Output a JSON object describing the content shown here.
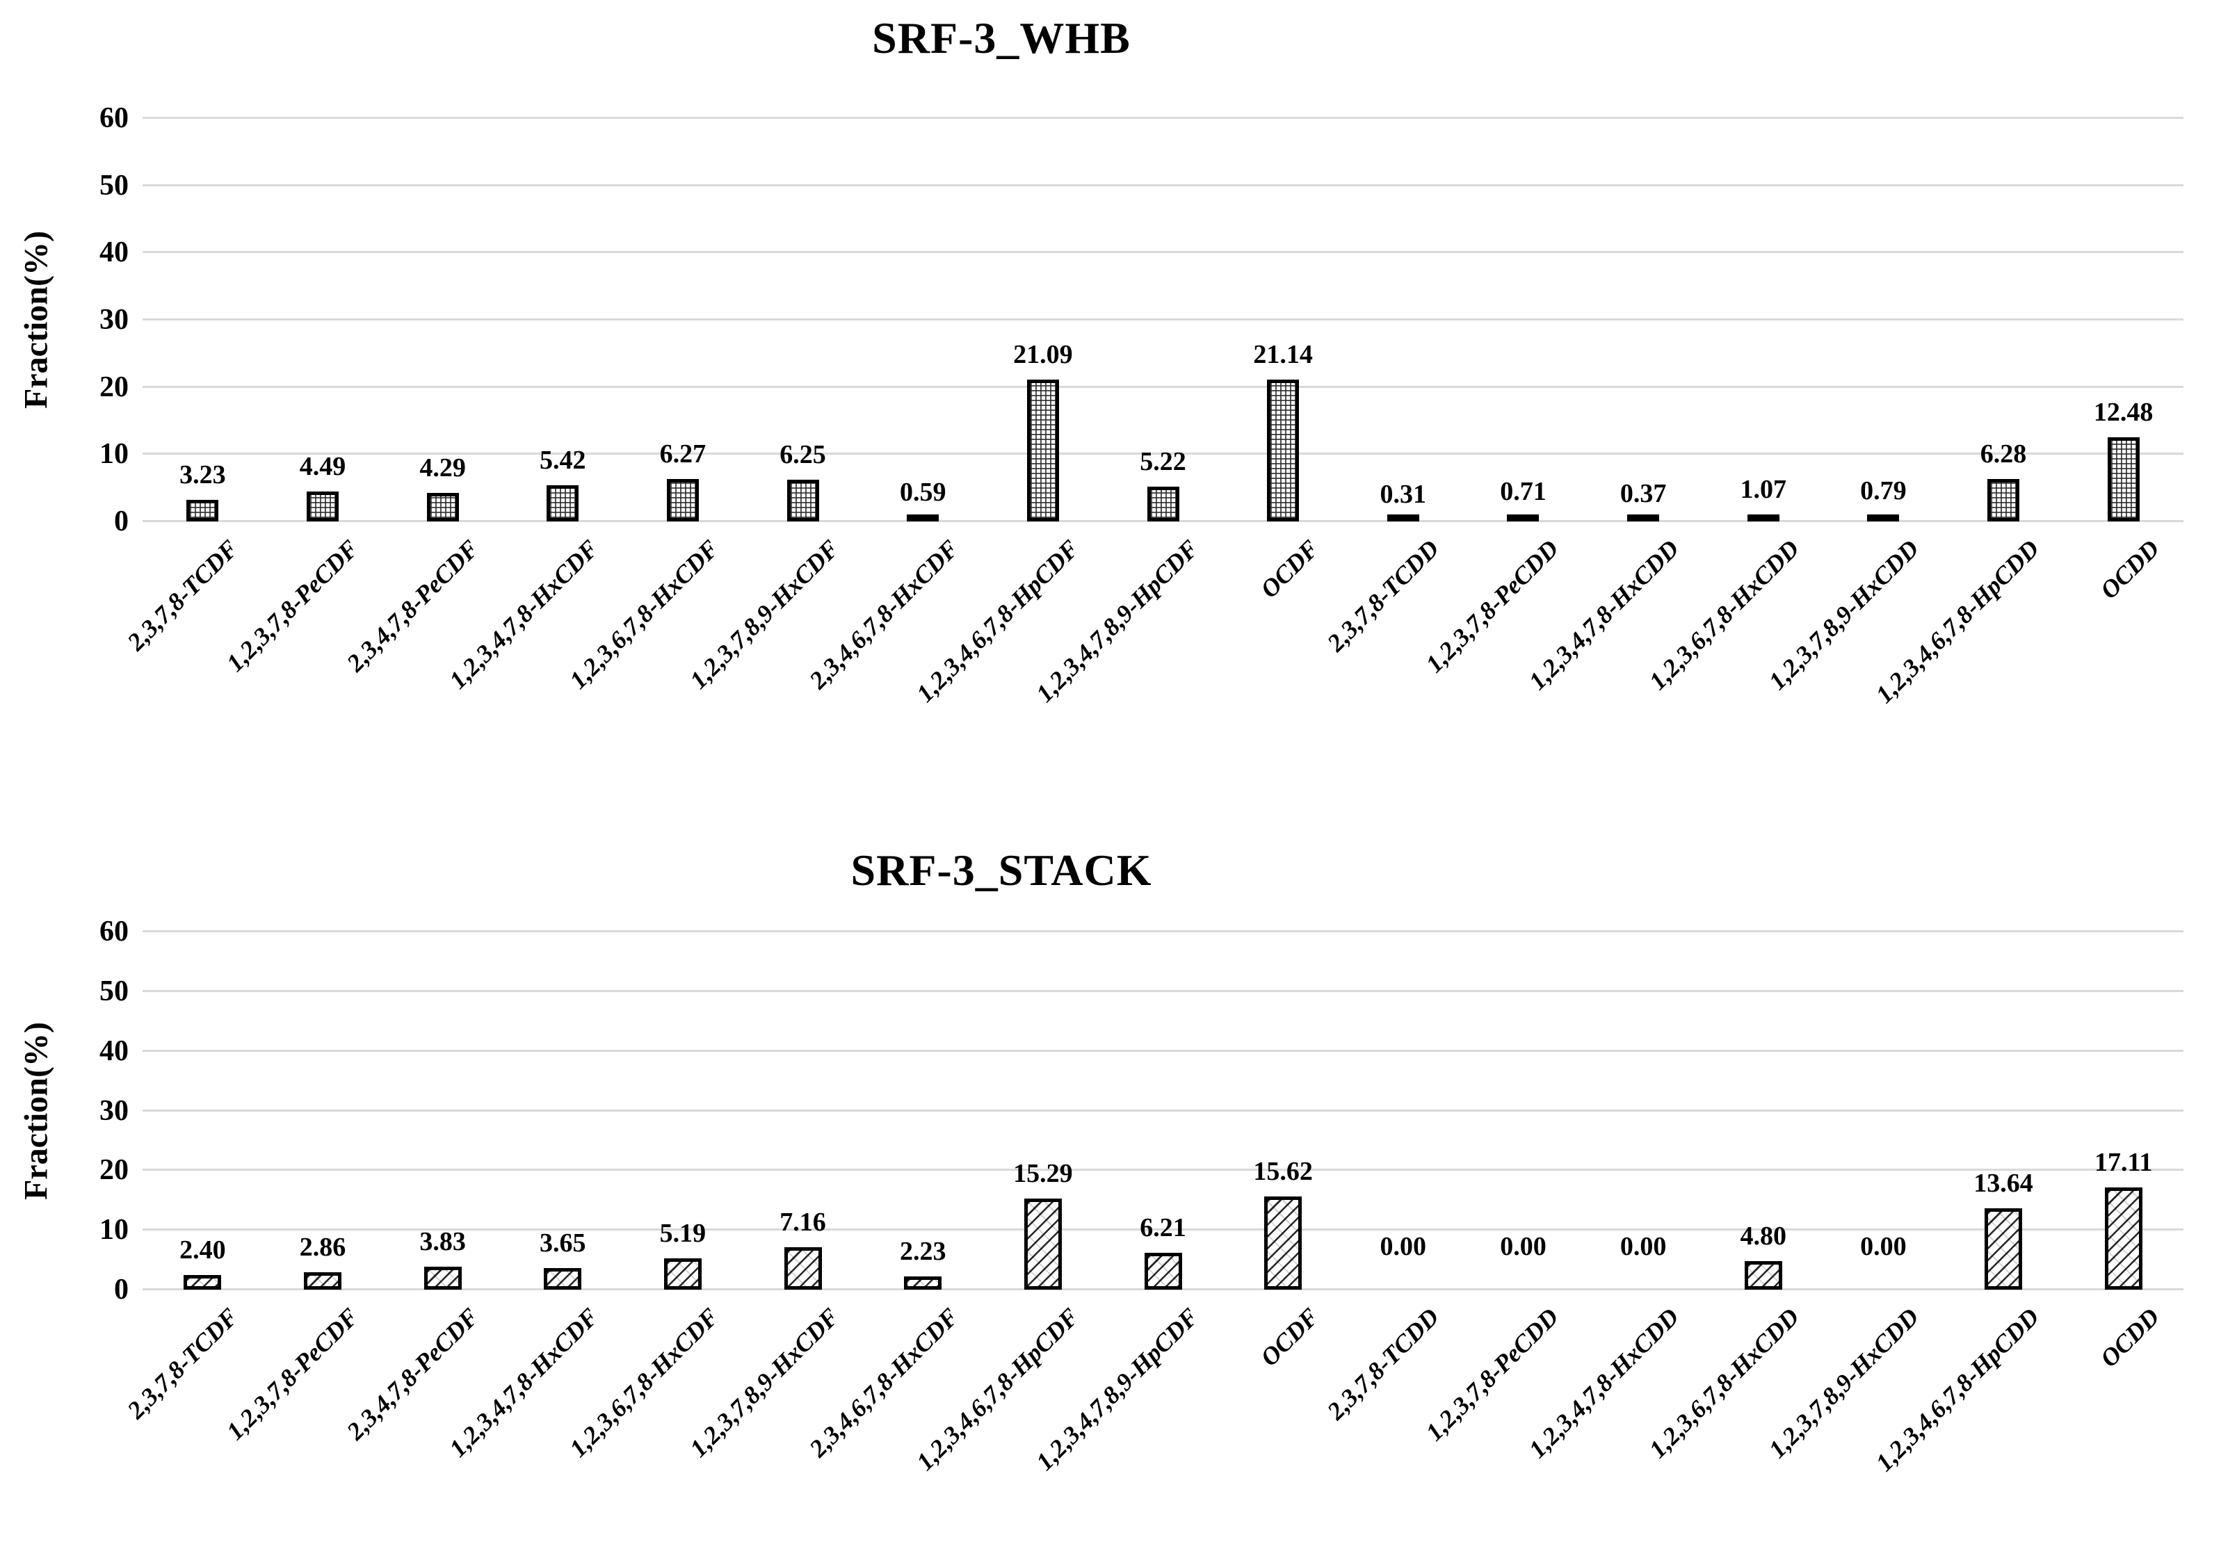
{
  "colors": {
    "background": "#ffffff",
    "gridline": "#d9d9d9",
    "bar_border": "#000000",
    "text": "#000000"
  },
  "chart_data": [
    {
      "type": "bar",
      "title": "SRF-3_WHB",
      "xlabel": "",
      "ylabel": "Fraction(%)",
      "ylim": [
        0,
        60
      ],
      "yticks": [
        0,
        10,
        20,
        30,
        40,
        50,
        60
      ],
      "grid": true,
      "legend_position": "none",
      "fill_pattern": "dotted-grid",
      "categories": [
        "2,3,7,8-TCDF",
        "1,2,3,7,8-PeCDF",
        "2,3,4,7,8-PeCDF",
        "1,2,3,4,7,8-HxCDF",
        "1,2,3,6,7,8-HxCDF",
        "1,2,3,7,8,9-HxCDF",
        "2,3,4,6,7,8-HxCDF",
        "1,2,3,4,6,7,8-HpCDF",
        "1,2,3,4,7,8,9-HpCDF",
        "OCDF",
        "2,3,7,8-TCDD",
        "1,2,3,7,8-PeCDD",
        "1,2,3,4,7,8-HxCDD",
        "1,2,3,6,7,8-HxCDD",
        "1,2,3,7,8,9-HxCDD",
        "1,2,3,4,6,7,8-HpCDD",
        "OCDD"
      ],
      "values": [
        3.23,
        4.49,
        4.29,
        5.42,
        6.27,
        6.25,
        0.59,
        21.09,
        5.22,
        21.14,
        0.31,
        0.71,
        0.37,
        1.07,
        0.79,
        6.28,
        12.48
      ],
      "value_labels": [
        "3.23",
        "4.49",
        "4.29",
        "5.42",
        "6.27",
        "6.25",
        "0.59",
        "21.09",
        "5.22",
        "21.14",
        "0.31",
        "0.71",
        "0.37",
        "1.07",
        "0.79",
        "6.28",
        "12.48"
      ]
    },
    {
      "type": "bar",
      "title": "SRF-3_STACK",
      "xlabel": "",
      "ylabel": "Fraction(%)",
      "ylim": [
        0,
        60
      ],
      "yticks": [
        0,
        10,
        20,
        30,
        40,
        50,
        60
      ],
      "grid": true,
      "legend_position": "none",
      "fill_pattern": "diagonal-hatch",
      "categories": [
        "2,3,7,8-TCDF",
        "1,2,3,7,8-PeCDF",
        "2,3,4,7,8-PeCDF",
        "1,2,3,4,7,8-HxCDF",
        "1,2,3,6,7,8-HxCDF",
        "1,2,3,7,8,9-HxCDF",
        "2,3,4,6,7,8-HxCDF",
        "1,2,3,4,6,7,8-HpCDF",
        "1,2,3,4,7,8,9-HpCDF",
        "OCDF",
        "2,3,7,8-TCDD",
        "1,2,3,7,8-PeCDD",
        "1,2,3,4,7,8-HxCDD",
        "1,2,3,6,7,8-HxCDD",
        "1,2,3,7,8,9-HxCDD",
        "1,2,3,4,6,7,8-HpCDD",
        "OCDD"
      ],
      "values": [
        2.4,
        2.86,
        3.83,
        3.65,
        5.19,
        7.16,
        2.23,
        15.29,
        6.21,
        15.62,
        0.0,
        0.0,
        0.0,
        4.8,
        0.0,
        13.64,
        17.11
      ],
      "value_labels": [
        "2.40",
        "2.86",
        "3.83",
        "3.65",
        "5.19",
        "7.16",
        "2.23",
        "15.29",
        "6.21",
        "15.62",
        "0.00",
        "0.00",
        "0.00",
        "4.80",
        "0.00",
        "13.64",
        "17.11"
      ]
    }
  ]
}
